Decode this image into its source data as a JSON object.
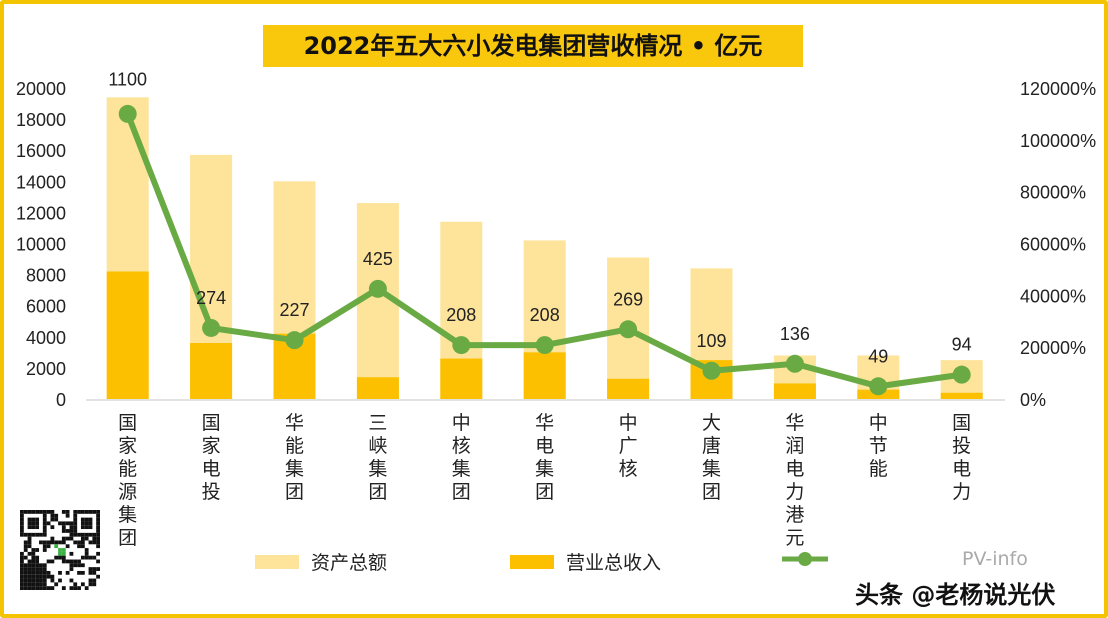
{
  "chart_data": {
    "type": "bar",
    "title": "2022年五大六小发电集团营收情况 • 亿元",
    "categories": [
      "国家能源集团",
      "国家电投",
      "华能集团",
      "三峡集团",
      "中核集团",
      "华电集团",
      "中广核",
      "大唐集团",
      "华润电力港元",
      "中节能",
      "国投电力"
    ],
    "series": [
      {
        "name": "资产总额",
        "type": "bar",
        "axis": "left",
        "color": "#fde49a",
        "values": [
          19400,
          15700,
          14000,
          12600,
          11400,
          10200,
          9100,
          8400,
          2800,
          2800,
          2500
        ]
      },
      {
        "name": "营业总收入",
        "type": "bar",
        "axis": "left",
        "color": "#fcc000",
        "values": [
          8200,
          3600,
          4200,
          1400,
          2600,
          3000,
          1300,
          2500,
          1000,
          600,
          400
        ]
      },
      {
        "name": "",
        "type": "line",
        "axis": "right",
        "color": "#6aaa44",
        "values": [
          110000,
          27400,
          22700,
          42500,
          20800,
          20800,
          26900,
          10900,
          13600,
          4900,
          9400
        ],
        "data_labels": [
          "1100",
          "274",
          "227",
          "425",
          "208",
          "208",
          "269",
          "109",
          "136",
          "49",
          "94"
        ]
      }
    ],
    "left_axis": {
      "ylim": [
        0,
        20000
      ],
      "ticks": [
        "0",
        "2000",
        "4000",
        "6000",
        "8000",
        "10000",
        "12000",
        "14000",
        "16000",
        "18000",
        "20000"
      ]
    },
    "right_axis": {
      "ylim": [
        0,
        120000
      ],
      "ticks": [
        "0%",
        "20000%",
        "40000%",
        "60000%",
        "80000%",
        "100000%",
        "120000%"
      ]
    },
    "grid": false,
    "legend_position": "bottom",
    "legend_partial_text": "PV-info"
  },
  "watermark": "头条 @老杨说光伏",
  "frame_color": "#f5c400"
}
